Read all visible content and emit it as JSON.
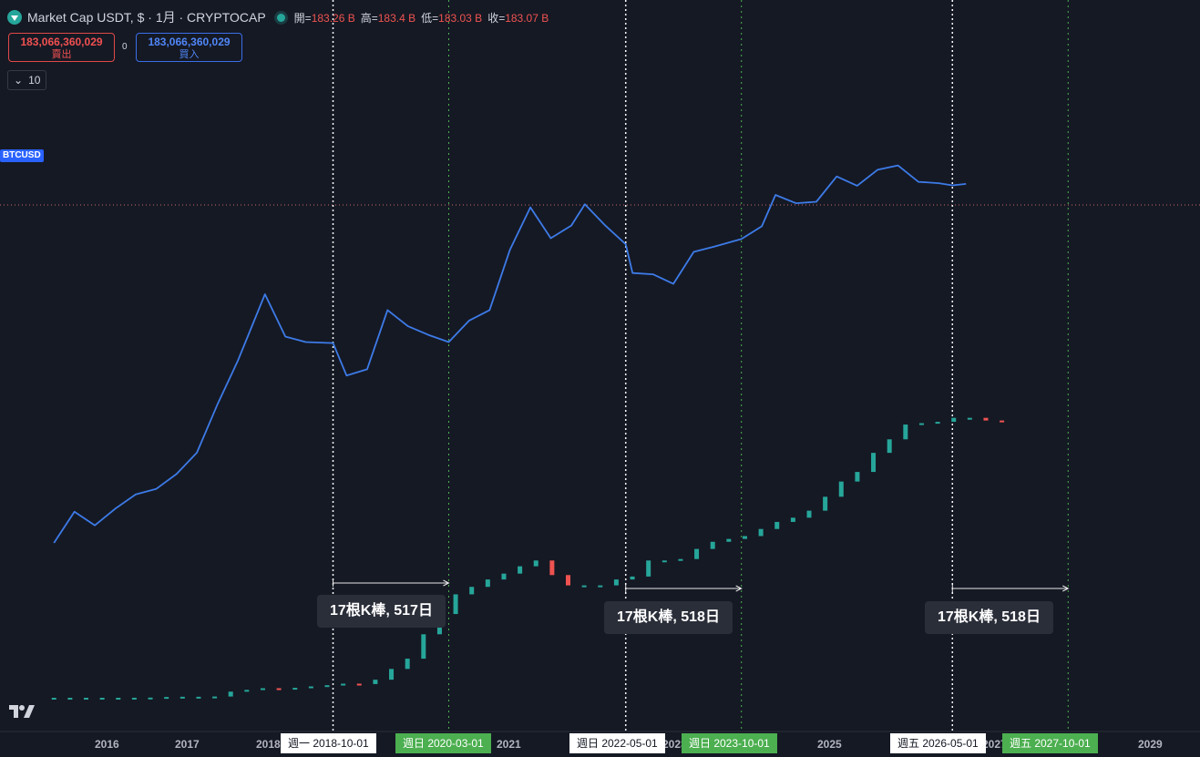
{
  "header": {
    "title": "Market Cap USDT, $ · 1月 · CRYPTOCAP",
    "open_label": "開=",
    "open_value": "183.26 B",
    "high_label": "高=",
    "high_value": "183.4 B",
    "low_label": "低=",
    "low_value": "183.03 B",
    "close_label": "收=",
    "close_value": "183.07 B"
  },
  "trade": {
    "sell_price": "183,066,360,029",
    "sell_label": "賣出",
    "buy_price": "183,066,360,029",
    "buy_label": "買入",
    "spread": "0"
  },
  "collapse_count": "10",
  "overlay_symbol": "BTCUSD",
  "date_tags": [
    {
      "text": "週一  2018-10-01",
      "style": "white"
    },
    {
      "text": "週日  2020-03-01",
      "style": "green"
    },
    {
      "text": "週日  2022-05-01",
      "style": "white"
    },
    {
      "text": "週日  2023-10-01",
      "style": "green"
    },
    {
      "text": "週五  2026-05-01",
      "style": "white"
    },
    {
      "text": "週五  2027-10-01",
      "style": "green"
    }
  ],
  "measures": [
    {
      "text": "17根K棒, 517日"
    },
    {
      "text": "17根K棒, 518日"
    },
    {
      "text": "17根K棒, 518日"
    }
  ],
  "x_axis_years": [
    "2016",
    "2017",
    "2018",
    "2021",
    "2023",
    "2025",
    "2027",
    "2029"
  ],
  "colors": {
    "up": "#26a69a",
    "down": "#ef5350",
    "btc_line": "#3d7be8",
    "white_marker": "#ffffff",
    "green_marker": "#4caf50",
    "background": "#151924"
  },
  "chart_data": {
    "type": "line",
    "title": "Market Cap USDT, $ · 1月 · CRYPTOCAP",
    "x_axis": "date (monthly)",
    "y_scale": "log",
    "series": [
      {
        "name": "BTCUSD",
        "x": [
          "2015-05",
          "2015-08",
          "2015-11",
          "2016-02",
          "2016-05",
          "2016-08",
          "2016-11",
          "2017-02",
          "2017-05",
          "2017-08",
          "2017-12",
          "2018-03",
          "2018-06",
          "2018-10",
          "2018-12",
          "2019-03",
          "2019-06",
          "2019-09",
          "2019-12",
          "2020-03",
          "2020-06",
          "2020-09",
          "2020-12",
          "2021-03",
          "2021-06",
          "2021-09",
          "2021-11",
          "2022-02",
          "2022-05",
          "2022-06",
          "2022-09",
          "2022-12",
          "2023-03",
          "2023-06",
          "2023-10",
          "2024-01",
          "2024-03",
          "2024-06",
          "2024-09",
          "2024-12",
          "2025-03",
          "2025-06",
          "2025-09",
          "2025-12",
          "2026-03",
          "2026-05",
          "2026-07"
        ],
        "values": [
          240,
          400,
          320,
          420,
          530,
          580,
          740,
          1050,
          2300,
          4700,
          14000,
          7000,
          6400,
          6300,
          3700,
          4100,
          10800,
          8300,
          7200,
          6400,
          9100,
          10800,
          29000,
          58000,
          35000,
          43000,
          61000,
          43000,
          31700,
          19800,
          19400,
          16600,
          28000,
          30500,
          34500,
          42500,
          71000,
          62000,
          63500,
          96000,
          82500,
          107000,
          115000,
          88000,
          86000,
          83000,
          85000
        ]
      }
    ],
    "candles_note": "Market Cap USDT monthly candles",
    "candles_close_billions": [
      0.0002,
      0.0003,
      0.0004,
      0.0006,
      0.001,
      0.01,
      0.05,
      0.22,
      0.28,
      0.28,
      0.35,
      1.0,
      1.8,
      2.6,
      2.5,
      2.8,
      3.5,
      4.1,
      4.9,
      4.7,
      7.0,
      13,
      19,
      34,
      47,
      60,
      65,
      70,
      74,
      79,
      83,
      73,
      66,
      66,
      66,
      70,
      72,
      83,
      83,
      84,
      91,
      96,
      98,
      100,
      105,
      110,
      113,
      118,
      128,
      139,
      146,
      160,
      170,
      181,
      182,
      183,
      186,
      186,
      184,
      183.07
    ],
    "measurement_ranges": [
      {
        "from": "2018-10-01",
        "to": "2020-03-01",
        "bars": 17,
        "days": 517
      },
      {
        "from": "2022-05-01",
        "to": "2023-10-01",
        "bars": 17,
        "days": 518
      },
      {
        "from": "2026-05-01",
        "to": "2027-10-01",
        "bars": 17,
        "days": 518
      }
    ],
    "grid": false
  }
}
